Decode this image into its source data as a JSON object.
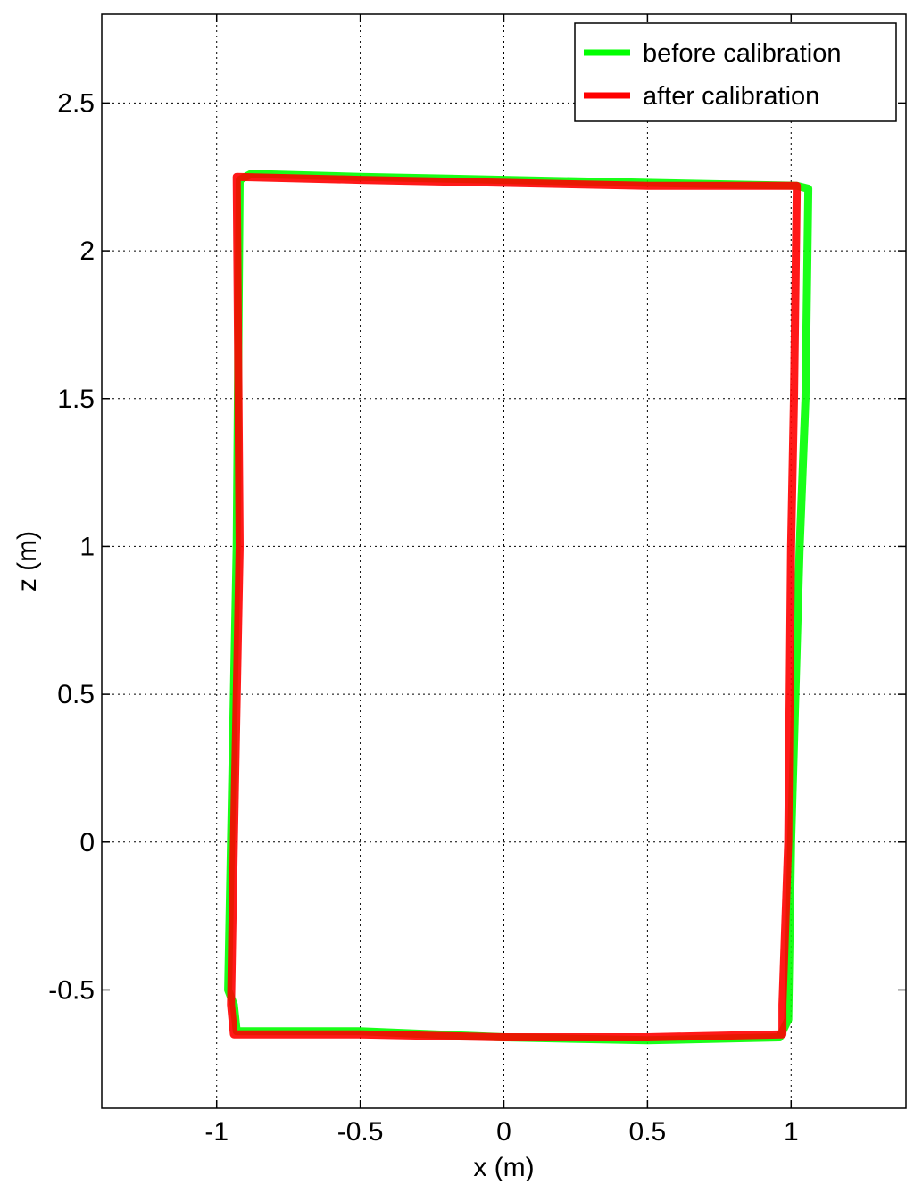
{
  "chart_data": {
    "type": "line",
    "title": "",
    "xlabel": "x (m)",
    "ylabel": "z (m)",
    "xlim": [
      -1.4,
      1.4
    ],
    "ylim": [
      -0.9,
      2.8
    ],
    "xticks": [
      -1,
      -0.5,
      0,
      0.5,
      1
    ],
    "yticks": [
      -0.5,
      0,
      0.5,
      1,
      1.5,
      2,
      2.5
    ],
    "xtick_labels": [
      "-1",
      "-0.5",
      "0",
      "0.5",
      "1"
    ],
    "ytick_labels": [
      "-0.5",
      "0",
      "0.5",
      "1",
      "1.5",
      "2",
      "2.5"
    ],
    "grid": true,
    "legend_position": "top-right",
    "series": [
      {
        "name": "before calibration",
        "color": "#00ff00",
        "x": [
          -0.92,
          -0.88,
          -0.5,
          0,
          0.5,
          1.02,
          1.06,
          1.05,
          1.03,
          1.0,
          0.99,
          0.96,
          0.5,
          0,
          -0.5,
          -0.93,
          -0.94,
          -0.96,
          -0.95,
          -0.93,
          -0.92
        ],
        "y": [
          2.24,
          2.26,
          2.25,
          2.24,
          2.23,
          2.22,
          2.21,
          1.5,
          1.0,
          0.0,
          -0.6,
          -0.66,
          -0.67,
          -0.66,
          -0.64,
          -0.64,
          -0.55,
          -0.5,
          0.0,
          1.0,
          2.24
        ]
      },
      {
        "name": "after calibration",
        "color": "#ff0000",
        "x": [
          -0.93,
          -0.5,
          0,
          0.5,
          1.02,
          1.01,
          1.0,
          0.99,
          0.97,
          0.97,
          0.5,
          0,
          -0.5,
          -0.94,
          -0.95,
          -0.94,
          -0.92,
          -0.93
        ],
        "y": [
          2.25,
          2.24,
          2.23,
          2.22,
          2.22,
          1.5,
          1.0,
          0.0,
          -0.55,
          -0.65,
          -0.66,
          -0.66,
          -0.65,
          -0.65,
          -0.55,
          0.0,
          1.0,
          2.25
        ]
      }
    ]
  }
}
